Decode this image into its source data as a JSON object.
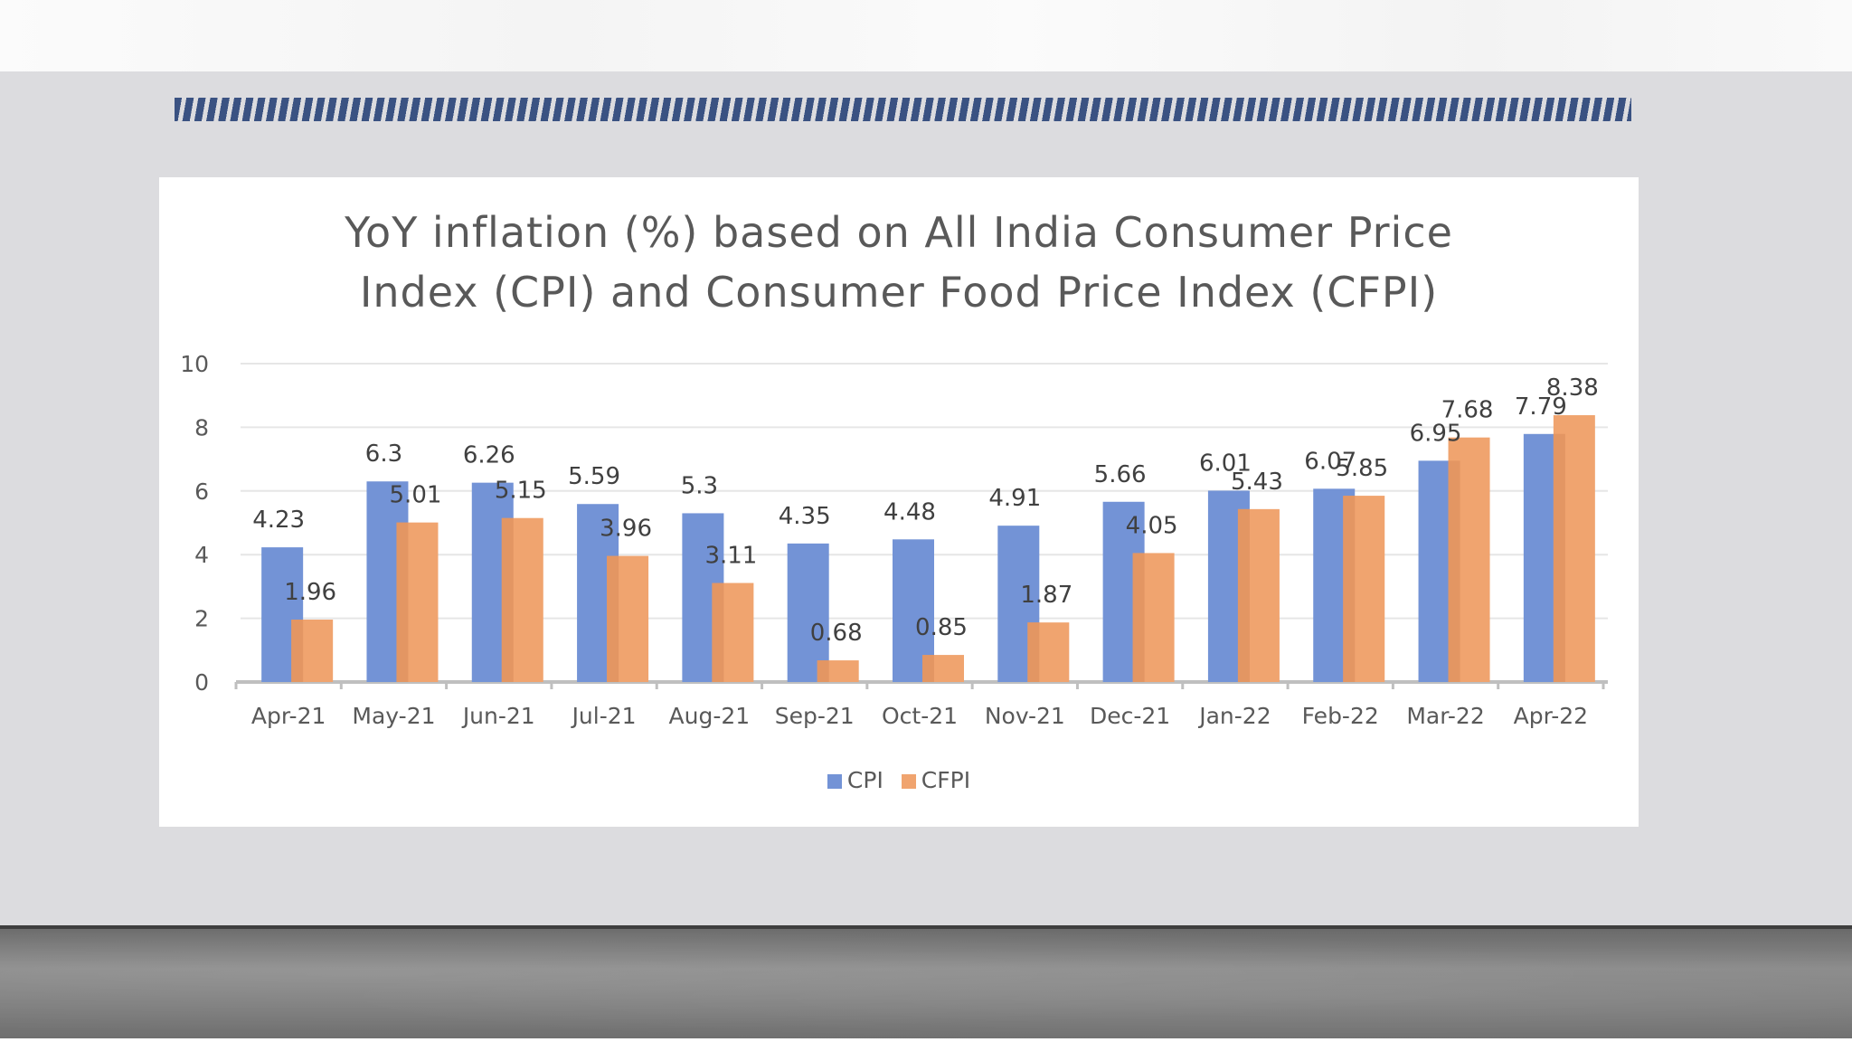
{
  "colors": {
    "cpi": "#7393d6",
    "cfpi": "#f0a46f",
    "slide_bg": "#dcdcdf",
    "stripe": "#3a5282",
    "grid": "#e6e6e6",
    "axis": "#bfbfbf"
  },
  "chart_data": {
    "type": "bar",
    "title": "YoY inflation (%) based on All India Consumer Price Index (CPI) and Consumer Food Price Index (CFPI)",
    "title_lines": [
      "YoY inflation (%) based on All India Consumer Price",
      "Index (CPI) and Consumer Food Price Index (CFPI)"
    ],
    "xlabel": "",
    "ylabel": "",
    "ylim": [
      0,
      10
    ],
    "yticks": [
      0,
      2,
      4,
      6,
      8,
      10
    ],
    "grid": true,
    "legend_position": "bottom",
    "categories": [
      "Apr-21",
      "May-21",
      "Jun-21",
      "Jul-21",
      "Aug-21",
      "Sep-21",
      "Oct-21",
      "Nov-21",
      "Dec-21",
      "Jan-22",
      "Feb-22",
      "Mar-22",
      "Apr-22"
    ],
    "series": [
      {
        "name": "CPI",
        "values": [
          4.23,
          6.3,
          6.26,
          5.59,
          5.3,
          4.35,
          4.48,
          4.91,
          5.66,
          6.01,
          6.07,
          6.95,
          7.79
        ],
        "labels": [
          "4.23",
          "6.3",
          "6.26",
          "5.59",
          "5.3",
          "4.35",
          "4.48",
          "4.91",
          "5.66",
          "6.01",
          "6.07",
          "6.95",
          "7.79"
        ]
      },
      {
        "name": "CFPI",
        "values": [
          1.96,
          5.01,
          5.15,
          3.96,
          3.11,
          0.68,
          0.85,
          1.87,
          4.05,
          5.43,
          5.85,
          7.68,
          8.38
        ],
        "labels": [
          "1.96",
          "5.01",
          "5.15",
          "3.96",
          "3.11",
          "0.68",
          "0.85",
          "1.87",
          "4.05",
          "5.43",
          "5.85",
          "7.68",
          "8.38"
        ]
      }
    ]
  }
}
